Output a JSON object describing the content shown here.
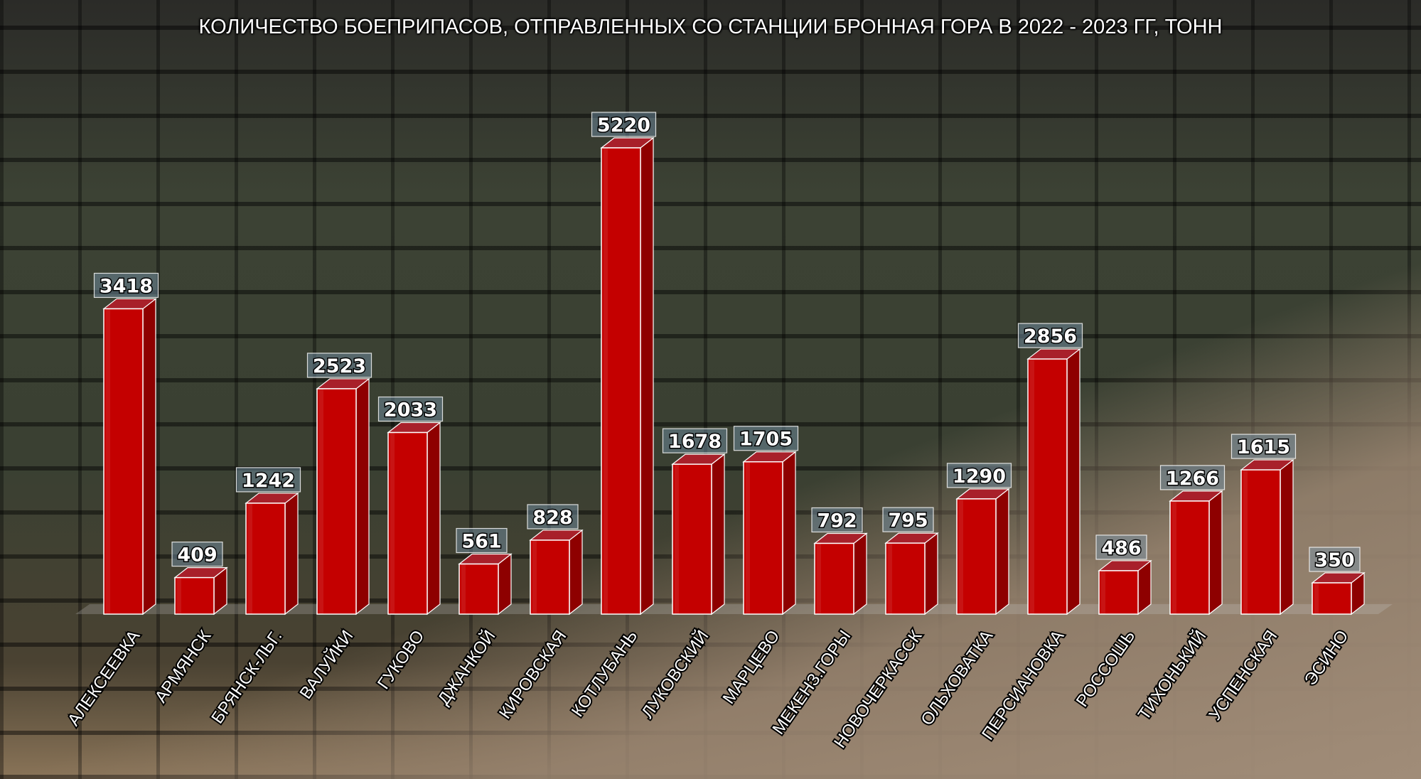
{
  "chart_data": {
    "type": "bar",
    "title": "КОЛИЧЕСТВО БОЕПРИПАСОВ, ОТПРАВЛЕННЫХ СО СТАНЦИИ БРОННАЯ ГОРА В 2022 - 2023 ГГ, ТОНН",
    "categories": [
      "АЛЕКСЕЕВКА",
      "АРМЯНСК",
      "БРЯНСК-ЛЬГ.",
      "ВАЛУЙКИ",
      "ГУКОВО",
      "ДЖАНКОЙ",
      "КИРОВСКАЯ",
      "КОТЛУБАНЬ",
      "ЛУКОВСКИЙ",
      "МАРЦЕВО",
      "МЕКЕНЗ.ГОРЫ",
      "НОВОЧЕРКАССК",
      "ОЛЬХОВАТКА",
      "ПЕРСИАНОВКА",
      "РОССОШЬ",
      "ТИХОНЬКИЙ",
      "УСПЕНСКАЯ",
      "ЭСИНО"
    ],
    "values": [
      3418,
      409,
      1242,
      2523,
      2033,
      561,
      828,
      5220,
      1678,
      1705,
      792,
      795,
      1290,
      2856,
      486,
      1266,
      1615,
      350
    ],
    "data_labels": true,
    "xlabel": "",
    "ylabel": "",
    "ylim": [
      0,
      5220
    ],
    "grid": false,
    "style": "3d-column",
    "bar_color": "#c00000",
    "background": "photo of ammunition crates in a warehouse"
  }
}
